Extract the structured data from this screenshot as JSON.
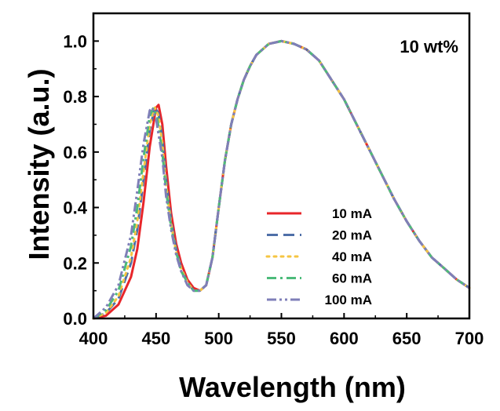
{
  "chart_data": {
    "type": "line",
    "annotation": "10 wt%",
    "xlabel": "Wavelength (nm)",
    "ylabel": "Intensity (a.u.)",
    "xlim": [
      400,
      700
    ],
    "ylim": [
      0,
      1.1
    ],
    "xticks": [
      "400",
      "450",
      "500",
      "550",
      "600",
      "650",
      "700"
    ],
    "yticks": [
      "0.0",
      "0.2",
      "0.4",
      "0.6",
      "0.8",
      "1.0"
    ],
    "grid": false,
    "legend_position": "lower-right",
    "series": [
      {
        "name": "10 mA",
        "color": "#e8262a",
        "dash": "solid",
        "points": [
          [
            400,
            0.0
          ],
          [
            410,
            0.01
          ],
          [
            420,
            0.05
          ],
          [
            430,
            0.15
          ],
          [
            435,
            0.25
          ],
          [
            440,
            0.42
          ],
          [
            445,
            0.62
          ],
          [
            450,
            0.76
          ],
          [
            452,
            0.77
          ],
          [
            455,
            0.7
          ],
          [
            458,
            0.55
          ],
          [
            462,
            0.38
          ],
          [
            466,
            0.27
          ],
          [
            470,
            0.2
          ],
          [
            475,
            0.14
          ],
          [
            480,
            0.11
          ],
          [
            485,
            0.1
          ],
          [
            490,
            0.12
          ],
          [
            495,
            0.22
          ],
          [
            500,
            0.4
          ],
          [
            505,
            0.57
          ],
          [
            510,
            0.7
          ],
          [
            515,
            0.79
          ],
          [
            520,
            0.86
          ],
          [
            525,
            0.91
          ],
          [
            530,
            0.95
          ],
          [
            540,
            0.99
          ],
          [
            550,
            1.0
          ],
          [
            560,
            0.99
          ],
          [
            570,
            0.97
          ],
          [
            580,
            0.93
          ],
          [
            590,
            0.86
          ],
          [
            600,
            0.79
          ],
          [
            610,
            0.7
          ],
          [
            620,
            0.61
          ],
          [
            630,
            0.52
          ],
          [
            640,
            0.43
          ],
          [
            650,
            0.35
          ],
          [
            660,
            0.28
          ],
          [
            670,
            0.22
          ],
          [
            680,
            0.18
          ],
          [
            690,
            0.14
          ],
          [
            700,
            0.11
          ]
        ]
      },
      {
        "name": "20 mA",
        "color": "#4f6fa8",
        "dash": "dashed",
        "points": [
          [
            400,
            0.0
          ],
          [
            410,
            0.02
          ],
          [
            420,
            0.07
          ],
          [
            430,
            0.2
          ],
          [
            435,
            0.32
          ],
          [
            440,
            0.5
          ],
          [
            445,
            0.68
          ],
          [
            449,
            0.76
          ],
          [
            452,
            0.74
          ],
          [
            455,
            0.65
          ],
          [
            458,
            0.5
          ],
          [
            462,
            0.35
          ],
          [
            466,
            0.25
          ],
          [
            470,
            0.18
          ],
          [
            475,
            0.13
          ],
          [
            480,
            0.1
          ],
          [
            485,
            0.1
          ],
          [
            490,
            0.12
          ],
          [
            495,
            0.22
          ],
          [
            500,
            0.4
          ],
          [
            505,
            0.57
          ],
          [
            510,
            0.7
          ],
          [
            515,
            0.79
          ],
          [
            520,
            0.86
          ],
          [
            525,
            0.91
          ],
          [
            530,
            0.95
          ],
          [
            540,
            0.99
          ],
          [
            550,
            1.0
          ],
          [
            560,
            0.99
          ],
          [
            570,
            0.97
          ],
          [
            580,
            0.93
          ],
          [
            590,
            0.86
          ],
          [
            600,
            0.79
          ],
          [
            610,
            0.7
          ],
          [
            620,
            0.61
          ],
          [
            630,
            0.52
          ],
          [
            640,
            0.43
          ],
          [
            650,
            0.35
          ],
          [
            660,
            0.28
          ],
          [
            670,
            0.22
          ],
          [
            680,
            0.18
          ],
          [
            690,
            0.14
          ],
          [
            700,
            0.11
          ]
        ]
      },
      {
        "name": "40 mA",
        "color": "#f5c542",
        "dash": "dotted",
        "points": [
          [
            400,
            0.0
          ],
          [
            410,
            0.02
          ],
          [
            420,
            0.08
          ],
          [
            430,
            0.22
          ],
          [
            435,
            0.35
          ],
          [
            440,
            0.53
          ],
          [
            445,
            0.7
          ],
          [
            449,
            0.76
          ],
          [
            452,
            0.73
          ],
          [
            455,
            0.63
          ],
          [
            458,
            0.48
          ],
          [
            462,
            0.34
          ],
          [
            466,
            0.24
          ],
          [
            470,
            0.18
          ],
          [
            475,
            0.13
          ],
          [
            480,
            0.1
          ],
          [
            485,
            0.1
          ],
          [
            490,
            0.12
          ],
          [
            495,
            0.22
          ],
          [
            500,
            0.4
          ],
          [
            505,
            0.57
          ],
          [
            510,
            0.7
          ],
          [
            515,
            0.79
          ],
          [
            520,
            0.86
          ],
          [
            525,
            0.91
          ],
          [
            530,
            0.95
          ],
          [
            540,
            0.99
          ],
          [
            550,
            1.0
          ],
          [
            560,
            0.99
          ],
          [
            570,
            0.97
          ],
          [
            580,
            0.93
          ],
          [
            590,
            0.86
          ],
          [
            600,
            0.79
          ],
          [
            610,
            0.7
          ],
          [
            620,
            0.61
          ],
          [
            630,
            0.52
          ],
          [
            640,
            0.43
          ],
          [
            650,
            0.35
          ],
          [
            660,
            0.28
          ],
          [
            670,
            0.22
          ],
          [
            680,
            0.18
          ],
          [
            690,
            0.14
          ],
          [
            700,
            0.11
          ]
        ]
      },
      {
        "name": "60 mA",
        "color": "#4cbb7a",
        "dash": "dashdot",
        "points": [
          [
            400,
            0.0
          ],
          [
            410,
            0.03
          ],
          [
            420,
            0.1
          ],
          [
            430,
            0.26
          ],
          [
            435,
            0.4
          ],
          [
            440,
            0.58
          ],
          [
            445,
            0.73
          ],
          [
            448,
            0.76
          ],
          [
            451,
            0.72
          ],
          [
            455,
            0.6
          ],
          [
            458,
            0.46
          ],
          [
            462,
            0.33
          ],
          [
            466,
            0.24
          ],
          [
            470,
            0.17
          ],
          [
            475,
            0.13
          ],
          [
            480,
            0.1
          ],
          [
            485,
            0.1
          ],
          [
            490,
            0.12
          ],
          [
            495,
            0.22
          ],
          [
            500,
            0.4
          ],
          [
            505,
            0.57
          ],
          [
            510,
            0.7
          ],
          [
            515,
            0.79
          ],
          [
            520,
            0.86
          ],
          [
            525,
            0.91
          ],
          [
            530,
            0.95
          ],
          [
            540,
            0.99
          ],
          [
            550,
            1.0
          ],
          [
            560,
            0.99
          ],
          [
            570,
            0.97
          ],
          [
            580,
            0.93
          ],
          [
            590,
            0.86
          ],
          [
            600,
            0.79
          ],
          [
            610,
            0.7
          ],
          [
            620,
            0.61
          ],
          [
            630,
            0.52
          ],
          [
            640,
            0.43
          ],
          [
            650,
            0.35
          ],
          [
            660,
            0.28
          ],
          [
            670,
            0.22
          ],
          [
            680,
            0.18
          ],
          [
            690,
            0.14
          ],
          [
            700,
            0.11
          ]
        ]
      },
      {
        "name": "100 mA",
        "color": "#7f7fb8",
        "dash": "dashdotdot",
        "points": [
          [
            400,
            0.0
          ],
          [
            410,
            0.04
          ],
          [
            420,
            0.12
          ],
          [
            430,
            0.3
          ],
          [
            435,
            0.46
          ],
          [
            440,
            0.63
          ],
          [
            445,
            0.75
          ],
          [
            447,
            0.76
          ],
          [
            450,
            0.72
          ],
          [
            455,
            0.58
          ],
          [
            458,
            0.44
          ],
          [
            462,
            0.32
          ],
          [
            466,
            0.23
          ],
          [
            470,
            0.17
          ],
          [
            475,
            0.12
          ],
          [
            480,
            0.1
          ],
          [
            485,
            0.1
          ],
          [
            490,
            0.12
          ],
          [
            495,
            0.22
          ],
          [
            500,
            0.4
          ],
          [
            505,
            0.57
          ],
          [
            510,
            0.7
          ],
          [
            515,
            0.79
          ],
          [
            520,
            0.86
          ],
          [
            525,
            0.91
          ],
          [
            530,
            0.95
          ],
          [
            540,
            0.99
          ],
          [
            550,
            1.0
          ],
          [
            560,
            0.99
          ],
          [
            570,
            0.97
          ],
          [
            580,
            0.93
          ],
          [
            590,
            0.86
          ],
          [
            600,
            0.79
          ],
          [
            610,
            0.7
          ],
          [
            620,
            0.61
          ],
          [
            630,
            0.52
          ],
          [
            640,
            0.43
          ],
          [
            650,
            0.35
          ],
          [
            660,
            0.28
          ],
          [
            670,
            0.22
          ],
          [
            680,
            0.18
          ],
          [
            690,
            0.14
          ],
          [
            700,
            0.11
          ]
        ]
      }
    ]
  }
}
